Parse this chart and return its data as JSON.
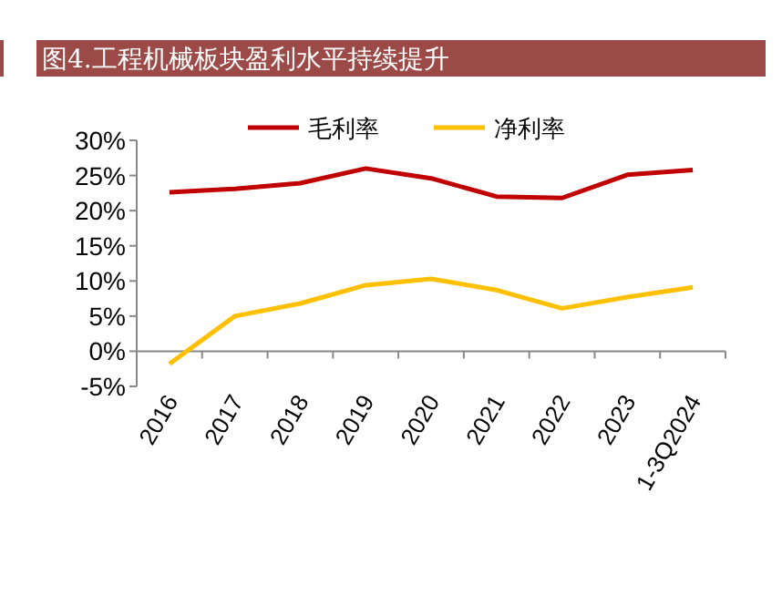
{
  "chart_data": {
    "type": "line",
    "title": "图4.工程机械板块盈利水平持续提升",
    "categories": [
      "2016",
      "2017",
      "2018",
      "2019",
      "2020",
      "2021",
      "2022",
      "2023",
      "1-3Q2024"
    ],
    "series": [
      {
        "name": "毛利率",
        "color": "#c00000",
        "values": [
          22.6,
          23.1,
          23.9,
          26.0,
          24.6,
          22.0,
          21.8,
          25.1,
          25.8
        ]
      },
      {
        "name": "净利率",
        "color": "#ffc000",
        "values": [
          -1.8,
          5.0,
          6.8,
          9.4,
          10.3,
          8.7,
          6.1,
          7.7,
          9.1
        ]
      }
    ],
    "ylim": [
      -5,
      30
    ],
    "yticks": [
      {
        "value": -5,
        "label": "-5%"
      },
      {
        "value": 0,
        "label": "0%"
      },
      {
        "value": 5,
        "label": "5%"
      },
      {
        "value": 10,
        "label": "10%"
      },
      {
        "value": 15,
        "label": "15%"
      },
      {
        "value": 20,
        "label": "20%"
      },
      {
        "value": 25,
        "label": "25%"
      },
      {
        "value": 30,
        "label": "30%"
      }
    ],
    "legend": "top",
    "grid": false,
    "marker": "none",
    "line_style": "solid"
  }
}
